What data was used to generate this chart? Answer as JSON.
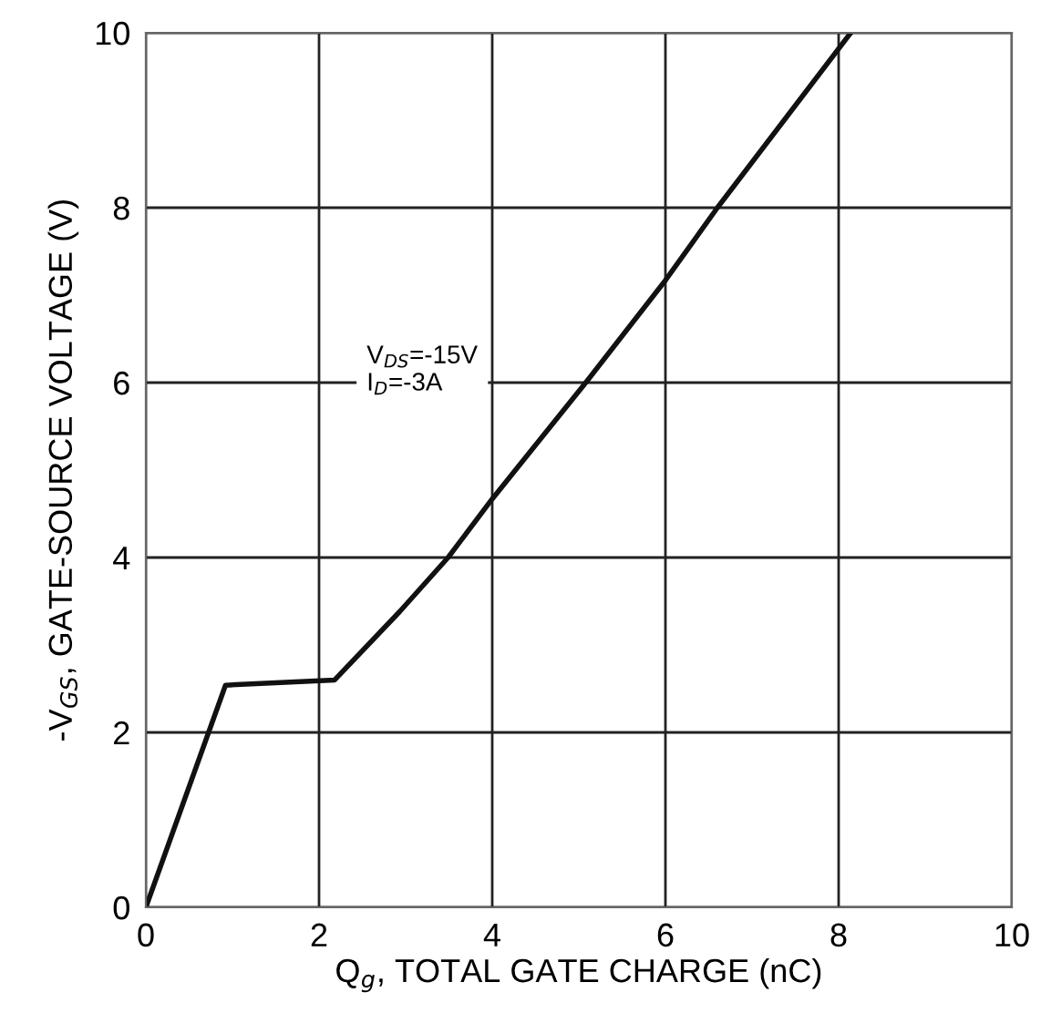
{
  "chart_data": {
    "type": "line",
    "xlabel": "Q$_{g}$, TOTAL GATE CHARGE (nC)",
    "ylabel": "-V$_{GS}$, GATE-SOURCE VOLTAGE (V)",
    "x": [
      0,
      0.92,
      2.18,
      2.93,
      3.49,
      4,
      5.08,
      6,
      6.6,
      8.14
    ],
    "series": [
      {
        "color": "#111111",
        "values": [
          0,
          2.54,
          2.6,
          3.38,
          4,
          4.67,
          6,
          7.17,
          8,
          10
        ]
      }
    ],
    "xlim": [
      0,
      10
    ],
    "ylim": [
      0,
      10
    ],
    "xticks": [
      0,
      2,
      4,
      6,
      8,
      10
    ],
    "yticks": [
      0,
      2,
      4,
      6,
      8,
      10
    ],
    "grid": true,
    "marker": "none",
    "line_style": "solid",
    "annotations": [
      "V$_{DS}$=-15V\nI$_{D}$=-3A"
    ]
  }
}
